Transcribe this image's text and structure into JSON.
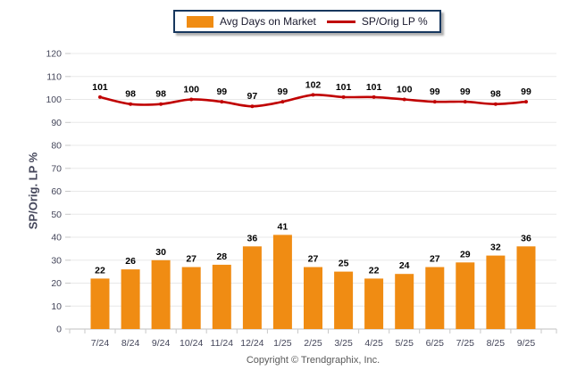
{
  "chart_data": {
    "type": "combo",
    "categories": [
      "7/24",
      "8/24",
      "9/24",
      "10/24",
      "11/24",
      "12/24",
      "1/25",
      "2/25",
      "3/25",
      "4/25",
      "5/25",
      "6/25",
      "7/25",
      "8/25",
      "9/25"
    ],
    "series": [
      {
        "name": "Avg Days on Market",
        "type": "bar",
        "color": "#F08C13",
        "values": [
          22,
          26,
          30,
          27,
          28,
          36,
          41,
          27,
          25,
          22,
          24,
          27,
          29,
          32,
          36
        ]
      },
      {
        "name": "SP/Orig LP %",
        "type": "line",
        "color": "#C00000",
        "values": [
          101,
          98,
          98,
          100,
          99,
          97,
          99,
          102,
          101,
          101,
          100,
          99,
          99,
          98,
          99
        ]
      }
    ],
    "title": "",
    "xlabel": "",
    "ylabel": "SP/Orig. LP %",
    "ylim": [
      0,
      120
    ],
    "ytick_step": 10,
    "grid": true,
    "value_labels": true,
    "legend_position": "top-center"
  },
  "footer": {
    "copyright": "Copyright © Trendgraphix, Inc."
  },
  "colors": {
    "grid": "#E8E8E8",
    "axis": "#BFBFBF",
    "tick": "#C9C9C9",
    "tick_text": "#44465A",
    "value_label_text": "#000000",
    "legend_border": "#17375E"
  }
}
